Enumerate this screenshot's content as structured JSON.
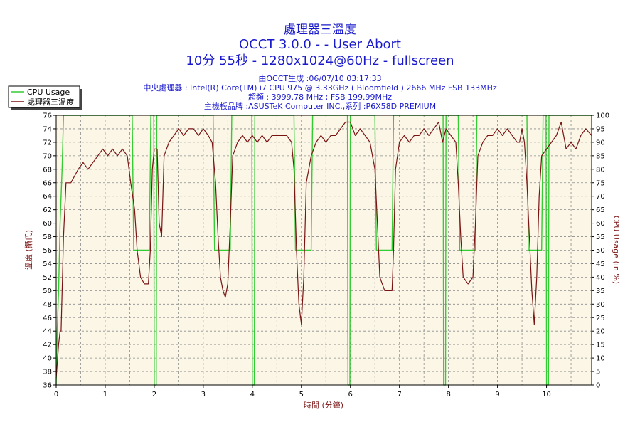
{
  "header": {
    "title_line1": "處理器三溫度",
    "title_line2": "OCCT 3.0.0 -  - User Abort",
    "title_line3": "10分 55秒 - 1280x1024@60Hz - fullscreen",
    "info_lines": [
      "由OCCT生成 :06/07/10 03:17:33",
      "中央處理器 : Intel(R) Core(TM) i7 CPU 975 @ 3.33GHz ( Bloomfield ) 2666 MHz FSB 133MHz",
      "超頻 : 3999.78 MHz ; FSB 199.99MHz",
      "主機板品牌 :ASUSTeK Computer INC.,系列 :P6X58D PREMIUM"
    ]
  },
  "colors": {
    "cpu_usage": "#33cc33",
    "temperature": "#7a1414",
    "plot_bg": "#fbf6e6",
    "grid": "#8c8c8c",
    "title": "#1a1acc",
    "axis_label": "#7a1414"
  },
  "chart_data": {
    "type": "line",
    "xlabel": "時間 (分鐘)",
    "ylabel_left": "溫度 (攝氏)",
    "ylabel_right": "CPU Usage (in %)",
    "xlim": [
      0,
      10.92
    ],
    "ylim_left": [
      36,
      76
    ],
    "ylim_right": [
      0,
      100
    ],
    "x_ticks": [
      0,
      1,
      2,
      3,
      4,
      5,
      6,
      7,
      8,
      9,
      10
    ],
    "y_left_ticks": [
      36,
      38,
      40,
      42,
      44,
      46,
      48,
      50,
      52,
      54,
      56,
      58,
      60,
      62,
      64,
      66,
      68,
      70,
      72,
      74,
      76
    ],
    "y_right_ticks": [
      0,
      5,
      10,
      15,
      20,
      25,
      30,
      35,
      40,
      45,
      50,
      55,
      60,
      65,
      70,
      75,
      80,
      85,
      90,
      95,
      100
    ],
    "grid": true,
    "legend": "top-left",
    "series": [
      {
        "name": "CPU Usage",
        "axis": "right",
        "points": [
          [
            0,
            0
          ],
          [
            0.02,
            20
          ],
          [
            0.05,
            35
          ],
          [
            0.08,
            60
          ],
          [
            0.12,
            80
          ],
          [
            0.15,
            100
          ],
          [
            1.55,
            100
          ],
          [
            1.58,
            50
          ],
          [
            1.9,
            50
          ],
          [
            1.93,
            100
          ],
          [
            1.99,
            100
          ],
          [
            2.0,
            0
          ],
          [
            2.04,
            0
          ],
          [
            2.05,
            100
          ],
          [
            3.2,
            100
          ],
          [
            3.23,
            50
          ],
          [
            3.55,
            50
          ],
          [
            3.58,
            100
          ],
          [
            3.99,
            100
          ],
          [
            4.0,
            0
          ],
          [
            4.04,
            0
          ],
          [
            4.05,
            100
          ],
          [
            4.85,
            100
          ],
          [
            4.88,
            50
          ],
          [
            5.2,
            50
          ],
          [
            5.23,
            100
          ],
          [
            5.94,
            100
          ],
          [
            5.95,
            0
          ],
          [
            5.99,
            0
          ],
          [
            6.0,
            100
          ],
          [
            6.5,
            100
          ],
          [
            6.53,
            50
          ],
          [
            6.85,
            50
          ],
          [
            6.88,
            100
          ],
          [
            7.89,
            100
          ],
          [
            7.9,
            0
          ],
          [
            7.94,
            0
          ],
          [
            7.95,
            100
          ],
          [
            8.2,
            100
          ],
          [
            8.23,
            50
          ],
          [
            8.55,
            50
          ],
          [
            8.58,
            100
          ],
          [
            9.6,
            100
          ],
          [
            9.63,
            50
          ],
          [
            9.9,
            50
          ],
          [
            9.93,
            100
          ],
          [
            9.99,
            100
          ],
          [
            10.0,
            0
          ],
          [
            10.04,
            0
          ],
          [
            10.05,
            100
          ],
          [
            10.92,
            100
          ]
        ]
      },
      {
        "name": "處理器三溫度",
        "axis": "left",
        "points": [
          [
            0,
            37
          ],
          [
            0.05,
            42
          ],
          [
            0.08,
            44
          ],
          [
            0.1,
            44
          ],
          [
            0.15,
            58
          ],
          [
            0.2,
            66
          ],
          [
            0.3,
            66
          ],
          [
            0.45,
            68
          ],
          [
            0.55,
            69
          ],
          [
            0.65,
            68
          ],
          [
            0.75,
            69
          ],
          [
            0.85,
            70
          ],
          [
            0.95,
            71
          ],
          [
            1.05,
            70
          ],
          [
            1.15,
            71
          ],
          [
            1.25,
            70
          ],
          [
            1.35,
            71
          ],
          [
            1.45,
            70
          ],
          [
            1.52,
            66
          ],
          [
            1.6,
            62
          ],
          [
            1.65,
            56
          ],
          [
            1.72,
            52
          ],
          [
            1.8,
            51
          ],
          [
            1.88,
            51
          ],
          [
            1.92,
            56
          ],
          [
            1.96,
            68
          ],
          [
            2.0,
            71
          ],
          [
            2.06,
            71
          ],
          [
            2.1,
            60
          ],
          [
            2.15,
            58
          ],
          [
            2.2,
            70
          ],
          [
            2.3,
            72
          ],
          [
            2.4,
            73
          ],
          [
            2.5,
            74
          ],
          [
            2.6,
            73
          ],
          [
            2.7,
            74
          ],
          [
            2.8,
            74
          ],
          [
            2.9,
            73
          ],
          [
            3.0,
            74
          ],
          [
            3.1,
            73
          ],
          [
            3.18,
            72
          ],
          [
            3.25,
            66
          ],
          [
            3.3,
            58
          ],
          [
            3.35,
            52
          ],
          [
            3.4,
            50
          ],
          [
            3.45,
            49
          ],
          [
            3.5,
            51
          ],
          [
            3.55,
            60
          ],
          [
            3.6,
            70
          ],
          [
            3.7,
            72
          ],
          [
            3.8,
            73
          ],
          [
            3.9,
            72
          ],
          [
            4.0,
            73
          ],
          [
            4.1,
            72
          ],
          [
            4.2,
            73
          ],
          [
            4.3,
            72
          ],
          [
            4.4,
            73
          ],
          [
            4.5,
            73
          ],
          [
            4.6,
            73
          ],
          [
            4.7,
            73
          ],
          [
            4.8,
            72
          ],
          [
            4.85,
            68
          ],
          [
            4.9,
            56
          ],
          [
            4.95,
            48
          ],
          [
            5.0,
            45
          ],
          [
            5.05,
            52
          ],
          [
            5.1,
            66
          ],
          [
            5.2,
            70
          ],
          [
            5.3,
            72
          ],
          [
            5.4,
            73
          ],
          [
            5.5,
            72
          ],
          [
            5.6,
            73
          ],
          [
            5.7,
            73
          ],
          [
            5.8,
            74
          ],
          [
            5.9,
            75
          ],
          [
            6.0,
            75
          ],
          [
            6.1,
            73
          ],
          [
            6.2,
            74
          ],
          [
            6.3,
            73
          ],
          [
            6.4,
            72
          ],
          [
            6.5,
            68
          ],
          [
            6.55,
            60
          ],
          [
            6.6,
            52
          ],
          [
            6.7,
            50
          ],
          [
            6.85,
            50
          ],
          [
            6.88,
            56
          ],
          [
            6.92,
            68
          ],
          [
            7.0,
            72
          ],
          [
            7.1,
            73
          ],
          [
            7.2,
            72
          ],
          [
            7.3,
            73
          ],
          [
            7.4,
            73
          ],
          [
            7.5,
            74
          ],
          [
            7.6,
            73
          ],
          [
            7.7,
            74
          ],
          [
            7.8,
            75
          ],
          [
            7.88,
            72
          ],
          [
            7.95,
            74
          ],
          [
            8.05,
            73
          ],
          [
            8.15,
            72
          ],
          [
            8.2,
            66
          ],
          [
            8.25,
            58
          ],
          [
            8.3,
            52
          ],
          [
            8.4,
            51
          ],
          [
            8.5,
            52
          ],
          [
            8.55,
            60
          ],
          [
            8.6,
            70
          ],
          [
            8.7,
            72
          ],
          [
            8.8,
            73
          ],
          [
            8.9,
            73
          ],
          [
            9.0,
            74
          ],
          [
            9.1,
            73
          ],
          [
            9.2,
            74
          ],
          [
            9.3,
            73
          ],
          [
            9.4,
            72
          ],
          [
            9.45,
            72
          ],
          [
            9.5,
            74
          ],
          [
            9.55,
            72
          ],
          [
            9.6,
            66
          ],
          [
            9.65,
            58
          ],
          [
            9.7,
            50
          ],
          [
            9.75,
            45
          ],
          [
            9.8,
            52
          ],
          [
            9.85,
            64
          ],
          [
            9.9,
            70
          ],
          [
            10.0,
            71
          ],
          [
            10.1,
            72
          ],
          [
            10.2,
            73
          ],
          [
            10.3,
            75
          ],
          [
            10.4,
            71
          ],
          [
            10.5,
            72
          ],
          [
            10.6,
            71
          ],
          [
            10.7,
            73
          ],
          [
            10.8,
            74
          ],
          [
            10.92,
            73
          ]
        ]
      }
    ]
  }
}
